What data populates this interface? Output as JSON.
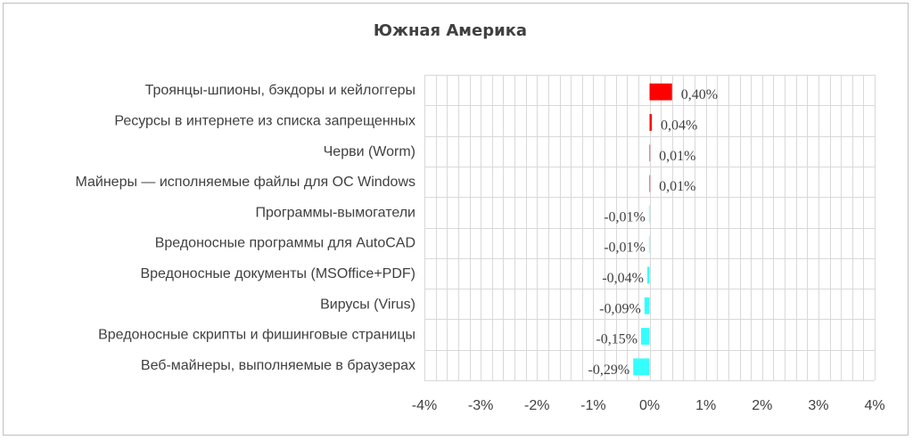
{
  "chart_data": {
    "type": "bar",
    "orientation": "horizontal",
    "title": "Южная Америка",
    "categories": [
      "Троянцы-шпионы, бэкдоры и кейлоггеры",
      "Ресурсы в интернете из списка запрещенных",
      "Черви (Worm)",
      "Майнеры — исполняемые файлы для ОС Windows",
      "Программы-вымогатели",
      "Вредоносные программы для AutoCAD",
      "Вредоносные документы (MSOffice+PDF)",
      "Вирусы (Virus)",
      "Вредоносные скрипты и фишинговые страницы",
      "Веб-майнеры, выполняемые в браузерах"
    ],
    "values": [
      0.4,
      0.04,
      0.01,
      0.01,
      -0.01,
      -0.01,
      -0.04,
      -0.09,
      -0.15,
      -0.29
    ],
    "data_labels": [
      "0,40%",
      "0,04%",
      "0,01%",
      "0,01%",
      "-0,01%",
      "-0,01%",
      "-0,04%",
      "-0,09%",
      "-0,15%",
      "-0,29%"
    ],
    "xlim": [
      -4,
      4
    ],
    "x_ticks": [
      -4,
      -3,
      -2,
      -1,
      0,
      1,
      2,
      3,
      4
    ],
    "x_tick_labels": [
      "-4%",
      "-3%",
      "-2%",
      "-1%",
      "0%",
      "1%",
      "2%",
      "3%",
      "4%"
    ],
    "xlabel": "",
    "ylabel": "",
    "grid": true,
    "colors": {
      "positive": "#ff0000",
      "negative": "#33ffff",
      "grid": "#d9d9d9",
      "text": "#404040"
    }
  }
}
